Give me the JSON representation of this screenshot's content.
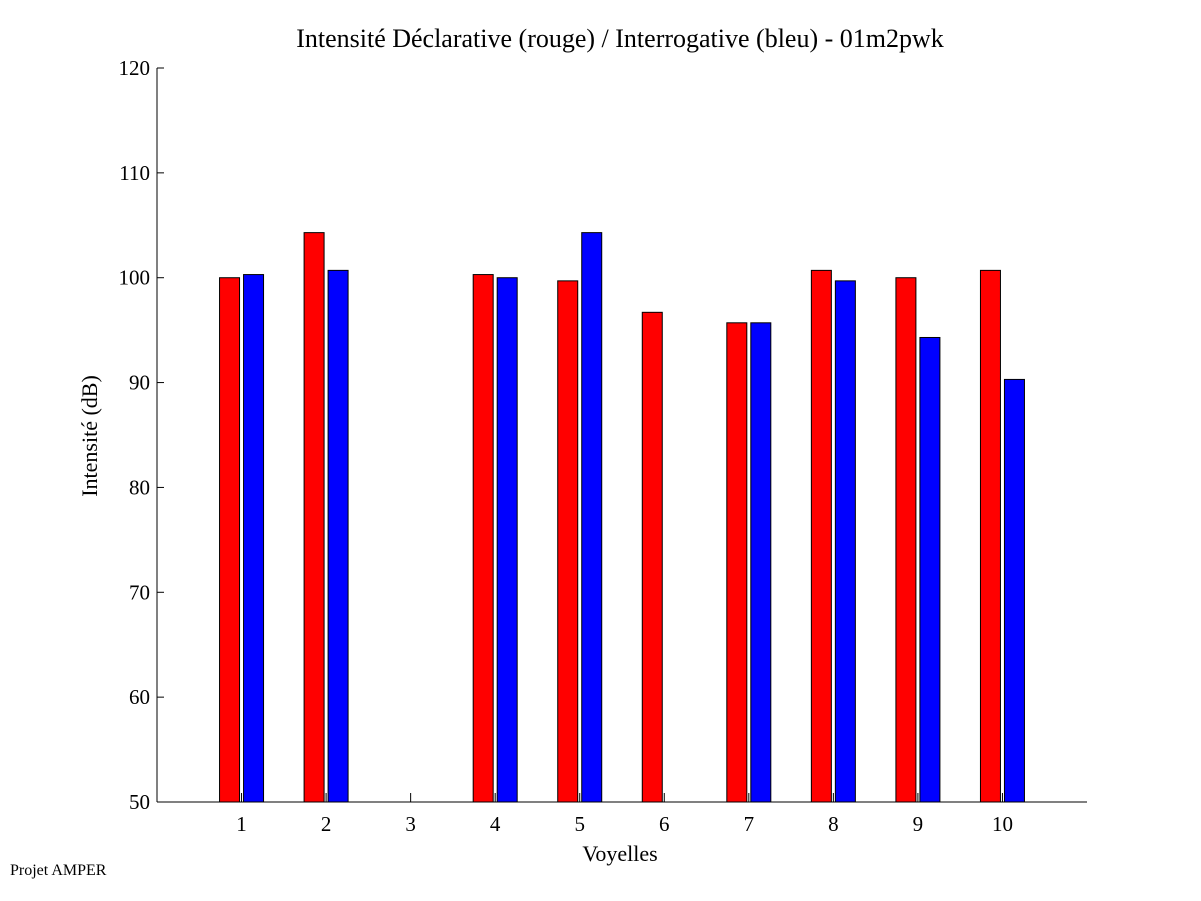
{
  "chart_data": {
    "type": "bar",
    "title": "Intensité Déclarative (rouge) / Interrogative (bleu) - 01m2pwk",
    "xlabel": "Voyelles",
    "ylabel": "Intensité (dB)",
    "categories": [
      "1",
      "2",
      "3",
      "4",
      "5",
      "6",
      "7",
      "8",
      "9",
      "10"
    ],
    "ylim": [
      50,
      120
    ],
    "yticks": [
      50,
      60,
      70,
      80,
      90,
      100,
      110,
      120
    ],
    "grid": false,
    "legend": "none",
    "series": [
      {
        "color": "#ff0000",
        "values": [
          100.0,
          104.3,
          null,
          100.3,
          99.7,
          96.7,
          95.7,
          100.7,
          100.0,
          100.7
        ]
      },
      {
        "color": "#0000ff",
        "values": [
          100.3,
          100.7,
          null,
          100.0,
          104.3,
          null,
          95.7,
          99.7,
          94.3,
          90.3
        ]
      }
    ]
  },
  "footer": "Projet AMPER"
}
